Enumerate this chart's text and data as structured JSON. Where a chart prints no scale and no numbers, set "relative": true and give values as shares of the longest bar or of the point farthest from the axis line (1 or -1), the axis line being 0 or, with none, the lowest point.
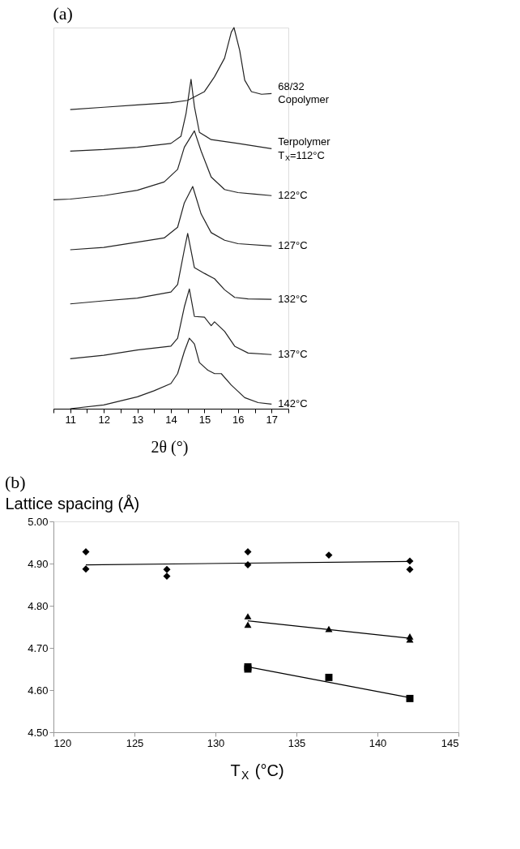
{
  "chart_data": [
    {
      "type": "line",
      "title": "(a)",
      "xlabel": "2θ (°)",
      "relative": true,
      "tick_labels": "x",
      "legend": false,
      "xlim": [
        10.5,
        17.5
      ],
      "xticks": [
        {
          "value": 10.5,
          "label": null
        },
        11,
        {
          "value": 11.5,
          "label": null
        },
        12,
        {
          "value": 12.5,
          "label": null
        },
        13,
        {
          "value": 13.5,
          "label": null
        },
        14,
        {
          "value": 14.5,
          "label": null
        },
        15,
        {
          "value": 15.5,
          "label": null
        },
        16,
        {
          "value": 16.5,
          "label": null
        },
        17,
        {
          "value": 17.5,
          "label": null
        }
      ],
      "series": [
        {
          "name": "68/32\nCopolymer",
          "color": "#222222",
          "x": [
            11,
            12,
            13,
            14,
            14.5,
            15,
            15.3,
            15.6,
            15.8,
            15.88,
            16.05,
            16.2,
            16.4,
            16.7,
            17
          ],
          "values": [
            0.785,
            0.791,
            0.797,
            0.803,
            0.809,
            0.832,
            0.871,
            0.92,
            0.988,
            1.0,
            0.94,
            0.862,
            0.832,
            0.825,
            0.827
          ]
        },
        {
          "name": "Terpolymer\nT$_{X}$=112°C",
          "color": "#222222",
          "x": [
            11,
            12,
            13,
            14,
            14.3,
            14.45,
            14.6,
            14.7,
            14.85,
            15.2,
            16,
            17
          ],
          "values": [
            0.676,
            0.68,
            0.686,
            0.696,
            0.715,
            0.774,
            0.864,
            0.793,
            0.725,
            0.706,
            0.696,
            0.682
          ]
        },
        {
          "name": "122°C",
          "color": "#222222",
          "x": [
            10.5,
            11,
            12,
            13,
            13.8,
            14.2,
            14.4,
            14.7,
            14.9,
            15.2,
            15.6,
            16,
            16.5,
            17
          ],
          "values": [
            0.548,
            0.55,
            0.559,
            0.573,
            0.595,
            0.628,
            0.686,
            0.729,
            0.676,
            0.608,
            0.575,
            0.567,
            0.563,
            0.559
          ]
        },
        {
          "name": "127°C",
          "color": "#222222",
          "x": [
            11,
            12,
            13,
            13.8,
            14.2,
            14.4,
            14.65,
            14.9,
            15.2,
            15.6,
            16,
            17
          ],
          "values": [
            0.417,
            0.423,
            0.437,
            0.448,
            0.476,
            0.54,
            0.583,
            0.511,
            0.462,
            0.442,
            0.433,
            0.427
          ]
        },
        {
          "name": "132°C",
          "color": "#222222",
          "x": [
            11,
            12,
            13,
            14,
            14.2,
            14.4,
            14.5,
            14.7,
            15,
            15.3,
            15.6,
            15.9,
            16.3,
            17
          ],
          "values": [
            0.275,
            0.283,
            0.29,
            0.306,
            0.326,
            0.417,
            0.46,
            0.37,
            0.355,
            0.341,
            0.312,
            0.292,
            0.288,
            0.287
          ]
        },
        {
          "name": "137°C",
          "color": "#222222",
          "x": [
            11,
            12,
            13,
            14,
            14.2,
            14.4,
            14.55,
            14.7,
            15,
            15.2,
            15.3,
            15.6,
            15.9,
            16.3,
            17
          ],
          "values": [
            0.131,
            0.14,
            0.154,
            0.164,
            0.185,
            0.267,
            0.314,
            0.242,
            0.24,
            0.218,
            0.228,
            0.203,
            0.164,
            0.146,
            0.142
          ]
        },
        {
          "name": "142°C",
          "color": "#222222",
          "x": [
            11,
            12,
            13,
            13.5,
            14,
            14.2,
            14.4,
            14.55,
            14.7,
            14.85,
            15.1,
            15.3,
            15.5,
            15.8,
            16.2,
            16.6,
            17
          ],
          "values": [
            0,
            0.01,
            0.031,
            0.047,
            0.066,
            0.092,
            0.15,
            0.185,
            0.17,
            0.121,
            0.101,
            0.092,
            0.092,
            0.062,
            0.029,
            0.016,
            0.012
          ]
        }
      ]
    },
    {
      "type": "scatter",
      "title": "(b)",
      "ylabel": "Lattice spacing (Å)",
      "xlabel": "T$_{X}$ (°C)",
      "grid": false,
      "xlim": [
        120,
        145
      ],
      "xticks": [
        120,
        125,
        130,
        135,
        140,
        145
      ],
      "ylim": [
        4.5,
        5.0
      ],
      "yticks": [
        {
          "value": 4.5,
          "label": "4.50"
        },
        {
          "value": 4.6,
          "label": "4.60"
        },
        {
          "value": 4.7,
          "label": "4.70"
        },
        {
          "value": 4.8,
          "label": "4.80"
        },
        {
          "value": 4.9,
          "label": "4.90"
        },
        {
          "value": 5.0,
          "label": "5.00"
        }
      ],
      "series": [
        {
          "color": "#000000",
          "marker": "diamond",
          "x": [
            122,
            122,
            127,
            127,
            132,
            132,
            137,
            142,
            142
          ],
          "values": [
            4.928,
            4.887,
            4.886,
            4.87,
            4.928,
            4.897,
            4.92,
            4.906,
            4.886
          ]
        },
        {
          "color": "#000000",
          "marker": "triangle",
          "x": [
            132,
            132,
            137,
            142,
            142
          ],
          "values": [
            4.775,
            4.755,
            4.745,
            4.727,
            4.72
          ]
        },
        {
          "color": "#000000",
          "marker": "square",
          "x": [
            132,
            132,
            137,
            142
          ],
          "values": [
            4.655,
            4.65,
            4.63,
            4.58
          ]
        },
        {
          "type": "line",
          "color": "#000000",
          "x": [
            122,
            142
          ],
          "values": [
            4.897,
            4.905
          ]
        },
        {
          "type": "line",
          "color": "#000000",
          "x": [
            132,
            142
          ],
          "values": [
            4.764,
            4.723
          ]
        },
        {
          "type": "line",
          "color": "#000000",
          "x": [
            132,
            142
          ],
          "values": [
            4.655,
            4.582
          ]
        }
      ]
    }
  ]
}
